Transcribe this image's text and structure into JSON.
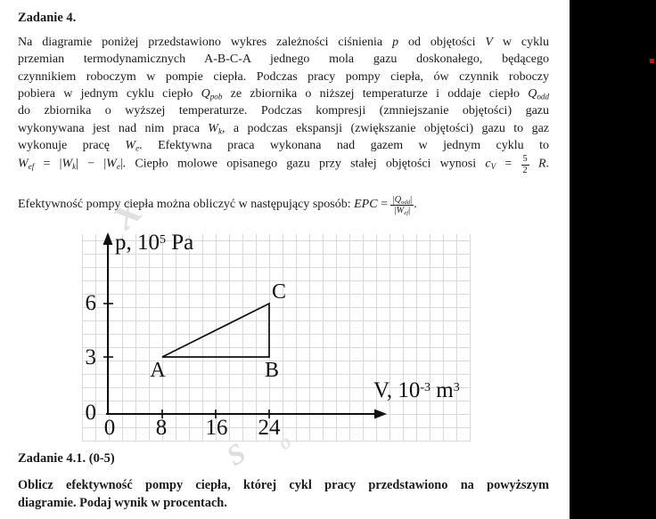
{
  "title": "Zadanie 4.",
  "paragraph": {
    "lines": [
      [
        {
          "t": "Na diagramie poniżej przedstawiono wykres zależności ciśnienia "
        },
        {
          "v": "p"
        },
        {
          "t": " od objętości "
        },
        {
          "v": "V"
        },
        {
          "t": " w cyklu"
        }
      ],
      [
        {
          "t": "przemian termodynamicznych A-B-C-A jednego mola gazu doskonałego, będącego"
        }
      ],
      [
        {
          "t": "czynnikiem roboczym w pompie ciepła. Podczas pracy pompy ciepła, ów czynnik roboczy"
        }
      ],
      [
        {
          "t": "pobiera w jednym cyklu ciepło "
        },
        {
          "v": "Q",
          "sub": "pob"
        },
        {
          "t": " ze zbiornika o niższej temperaturze i oddaje ciepło "
        },
        {
          "v": "Q",
          "sub": "odd"
        }
      ],
      [
        {
          "t": "do zbiornika o wyższej temperaturze. Podczas kompresji (zmniejszanie objętości) gazu"
        }
      ],
      [
        {
          "t": "wykonywana jest nad nim praca "
        },
        {
          "v": "W",
          "sub": "k"
        },
        {
          "t": ", a podczas ekspansji (zwiększanie objętości) gazu to gaz"
        }
      ],
      [
        {
          "t": "wykonuje pracę "
        },
        {
          "v": "W",
          "sub": "e"
        },
        {
          "t": ". Efektywna praca wykonana nad gazem w jednym cyklu to"
        }
      ],
      [
        {
          "v": "W",
          "sub": "ef"
        },
        {
          "t": " = |"
        },
        {
          "v": "W",
          "sub": "k"
        },
        {
          "t": "| − |"
        },
        {
          "v": "W",
          "sub": "e"
        },
        {
          "t": "|. Ciepło molowe opisanego gazu przy stałej objętości wynosi "
        },
        {
          "v": "c",
          "sub": "V"
        },
        {
          "t": " = "
        },
        {
          "frac": {
            "num": [
              {
                "t": "5"
              }
            ],
            "den": [
              {
                "t": "2"
              }
            ]
          }
        },
        {
          "t": " "
        },
        {
          "v": "R"
        },
        {
          "t": "."
        }
      ]
    ]
  },
  "epc": {
    "segs": [
      {
        "t": "Efektywność pompy ciepła można obliczyć w następujący sposób: "
      },
      {
        "v": "EPC"
      },
      {
        "t": " = "
      },
      {
        "frac": {
          "num": [
            {
              "t": "|"
            },
            {
              "v": "Q",
              "sub": "odd"
            },
            {
              "t": "|"
            }
          ],
          "den": [
            {
              "t": "|"
            },
            {
              "v": "W",
              "sub": "ef"
            },
            {
              "t": "|"
            }
          ]
        }
      },
      {
        "t": "."
      }
    ]
  },
  "diagram": {
    "p_label": {
      "pre": "p, 10",
      "sup": "5",
      "post": " Pa"
    },
    "v_label": {
      "pre": "V, 10",
      "sup": "-3",
      "mid": " m",
      "sup2": "3"
    },
    "y_ticks": [
      "6",
      "3",
      "0"
    ],
    "x_ticks": [
      "0",
      "8",
      "16",
      "24"
    ],
    "points": {
      "A": "A",
      "B": "B",
      "C": "C"
    }
  },
  "watermark": {
    "glyph1": "x",
    "glyph2": "S",
    "glyph3": "o"
  },
  "task": {
    "heading": "Zadanie 4.1. (0-5)",
    "line1": "Oblicz efektywność pompy ciepła, której cykl pracy przedstawiono na powyższym",
    "line2": "diagramie. Podaj wynik w procentach."
  },
  "colors": {
    "sidebar": "#000000",
    "red_marker": "#c41507",
    "grid_line": "#dadada",
    "ink": "#1b1b1b"
  },
  "chart_data": {
    "type": "line",
    "title": "",
    "xlabel": "V, 10⁻³ m³",
    "ylabel": "p, 10⁵ Pa",
    "xticks": [
      0,
      8,
      16,
      24
    ],
    "yticks": [
      0,
      3,
      6
    ],
    "xlim": [
      0,
      33
    ],
    "ylim": [
      0,
      10
    ],
    "grid": true,
    "series": [
      {
        "name": "cykl A-B-C-A",
        "x": [
          8,
          24,
          24,
          8
        ],
        "y": [
          3,
          3,
          6,
          3
        ],
        "points": {
          "A": [
            8,
            3
          ],
          "B": [
            24,
            3
          ],
          "C": [
            24,
            6
          ]
        }
      }
    ]
  }
}
